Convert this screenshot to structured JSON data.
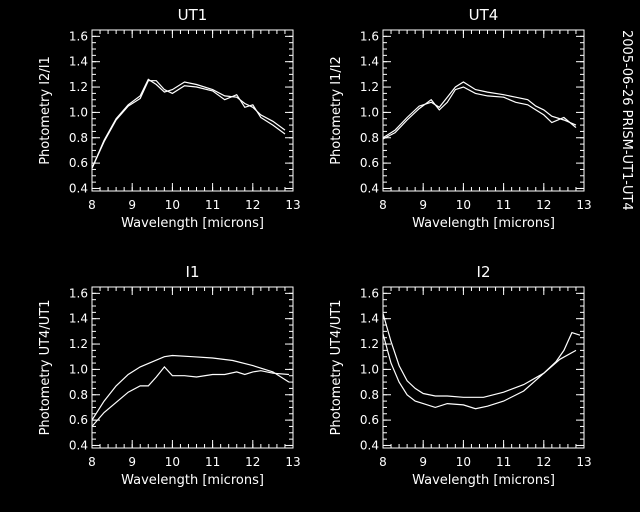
{
  "side_label": "2005-06-26 PRISM-UT1-UT4",
  "colors": {
    "background": "#000000",
    "foreground": "#ffffff"
  },
  "chart_data": [
    {
      "type": "line",
      "title": "UT1",
      "xlabel": "Wavelength [microns]",
      "ylabel": "Photometry I2/I1",
      "xlim": [
        8,
        13
      ],
      "ylim": [
        0.38,
        1.65
      ],
      "xticks": [
        8,
        9,
        10,
        11,
        12,
        13
      ],
      "xtick_labels": [
        "8",
        "9",
        "10",
        "11",
        "12",
        "13"
      ],
      "yticks": [
        0.4,
        0.6,
        0.8,
        1.0,
        1.2,
        1.4,
        1.6
      ],
      "ytick_labels": [
        "0.4",
        "0.6",
        "0.8",
        "1.0",
        "1.2",
        "1.4",
        "1.6"
      ],
      "series": [
        {
          "x": [
            8.0,
            8.3,
            8.6,
            8.9,
            9.2,
            9.4,
            9.6,
            9.8,
            10.0,
            10.3,
            10.6,
            11.0,
            11.3,
            11.6,
            11.8,
            12.0,
            12.2,
            12.5,
            12.8
          ],
          "y": [
            0.56,
            0.78,
            0.95,
            1.06,
            1.13,
            1.26,
            1.22,
            1.16,
            1.18,
            1.24,
            1.22,
            1.18,
            1.13,
            1.12,
            1.07,
            1.04,
            0.98,
            0.93,
            0.86
          ]
        },
        {
          "x": [
            8.0,
            8.3,
            8.6,
            8.9,
            9.2,
            9.4,
            9.6,
            9.8,
            10.0,
            10.3,
            10.6,
            11.0,
            11.3,
            11.6,
            11.8,
            12.0,
            12.2,
            12.5,
            12.8
          ],
          "y": [
            0.56,
            0.77,
            0.94,
            1.05,
            1.11,
            1.25,
            1.25,
            1.18,
            1.15,
            1.21,
            1.2,
            1.17,
            1.1,
            1.14,
            1.04,
            1.06,
            0.96,
            0.9,
            0.83
          ]
        }
      ]
    },
    {
      "type": "line",
      "title": "UT4",
      "xlabel": "Wavelength [microns]",
      "ylabel": "Photometry I1/I2",
      "xlim": [
        8,
        13
      ],
      "ylim": [
        0.38,
        1.65
      ],
      "xticks": [
        8,
        9,
        10,
        11,
        12,
        13
      ],
      "xtick_labels": [
        "8",
        "9",
        "10",
        "11",
        "12",
        "13"
      ],
      "yticks": [
        0.4,
        0.6,
        0.8,
        1.0,
        1.2,
        1.4,
        1.6
      ],
      "ytick_labels": [
        "0.4",
        "0.6",
        "0.8",
        "1.0",
        "1.2",
        "1.4",
        "1.6"
      ],
      "series": [
        {
          "x": [
            8.0,
            8.3,
            8.6,
            8.9,
            9.2,
            9.4,
            9.6,
            9.8,
            10.0,
            10.3,
            10.6,
            11.0,
            11.3,
            11.6,
            11.8,
            12.0,
            12.2,
            12.5,
            12.8
          ],
          "y": [
            0.8,
            0.86,
            0.96,
            1.05,
            1.08,
            1.04,
            1.12,
            1.2,
            1.24,
            1.18,
            1.16,
            1.14,
            1.12,
            1.1,
            1.05,
            1.02,
            0.97,
            0.94,
            0.9
          ]
        },
        {
          "x": [
            8.0,
            8.3,
            8.6,
            8.9,
            9.2,
            9.4,
            9.6,
            9.8,
            10.0,
            10.3,
            10.6,
            11.0,
            11.3,
            11.6,
            11.8,
            12.0,
            12.2,
            12.5,
            12.8
          ],
          "y": [
            0.79,
            0.84,
            0.94,
            1.03,
            1.1,
            1.02,
            1.08,
            1.18,
            1.2,
            1.15,
            1.13,
            1.12,
            1.08,
            1.06,
            1.02,
            0.98,
            0.92,
            0.96,
            0.88
          ]
        }
      ]
    },
    {
      "type": "line",
      "title": "I1",
      "xlabel": "Wavelength [microns]",
      "ylabel": "Photometry UT4/UT1",
      "xlim": [
        8,
        13
      ],
      "ylim": [
        0.38,
        1.65
      ],
      "xticks": [
        8,
        9,
        10,
        11,
        12,
        13
      ],
      "xtick_labels": [
        "8",
        "9",
        "10",
        "11",
        "12",
        "13"
      ],
      "yticks": [
        0.4,
        0.6,
        0.8,
        1.0,
        1.2,
        1.4,
        1.6
      ],
      "ytick_labels": [
        "0.4",
        "0.6",
        "0.8",
        "1.0",
        "1.2",
        "1.4",
        "1.6"
      ],
      "series": [
        {
          "x": [
            8.0,
            8.3,
            8.6,
            8.9,
            9.2,
            9.5,
            9.8,
            10.0,
            10.5,
            11.0,
            11.5,
            12.0,
            12.5,
            12.9
          ],
          "y": [
            0.6,
            0.75,
            0.87,
            0.96,
            1.02,
            1.06,
            1.1,
            1.11,
            1.1,
            1.09,
            1.07,
            1.03,
            0.98,
            0.9
          ]
        },
        {
          "x": [
            8.0,
            8.3,
            8.6,
            8.9,
            9.2,
            9.4,
            9.6,
            9.8,
            10.0,
            10.3,
            10.6,
            11.0,
            11.3,
            11.6,
            11.8,
            12.0,
            12.2,
            12.5,
            12.9
          ],
          "y": [
            0.55,
            0.66,
            0.74,
            0.82,
            0.87,
            0.87,
            0.94,
            1.02,
            0.95,
            0.95,
            0.94,
            0.96,
            0.96,
            0.98,
            0.96,
            0.98,
            0.99,
            0.97,
            0.96
          ]
        }
      ]
    },
    {
      "type": "line",
      "title": "I2",
      "xlabel": "Wavelength [microns]",
      "ylabel": "Photometry UT4/UT1",
      "xlim": [
        8,
        13
      ],
      "ylim": [
        0.38,
        1.65
      ],
      "xticks": [
        8,
        9,
        10,
        11,
        12,
        13
      ],
      "xtick_labels": [
        "8",
        "9",
        "10",
        "11",
        "12",
        "13"
      ],
      "yticks": [
        0.4,
        0.6,
        0.8,
        1.0,
        1.2,
        1.4,
        1.6
      ],
      "ytick_labels": [
        "0.4",
        "0.6",
        "0.8",
        "1.0",
        "1.2",
        "1.4",
        "1.6"
      ],
      "series": [
        {
          "x": [
            8.0,
            8.2,
            8.4,
            8.6,
            8.8,
            9.0,
            9.3,
            9.6,
            10.0,
            10.5,
            11.0,
            11.5,
            12.0,
            12.4,
            12.8
          ],
          "y": [
            1.44,
            1.22,
            1.03,
            0.91,
            0.85,
            0.81,
            0.79,
            0.79,
            0.78,
            0.78,
            0.82,
            0.88,
            0.97,
            1.08,
            1.15
          ]
        },
        {
          "x": [
            8.0,
            8.2,
            8.4,
            8.6,
            8.8,
            9.0,
            9.3,
            9.6,
            10.0,
            10.3,
            10.6,
            11.0,
            11.5,
            12.0,
            12.3,
            12.5,
            12.7,
            12.9
          ],
          "y": [
            1.28,
            1.05,
            0.9,
            0.8,
            0.75,
            0.73,
            0.7,
            0.73,
            0.72,
            0.69,
            0.71,
            0.75,
            0.83,
            0.97,
            1.06,
            1.15,
            1.29,
            1.27
          ]
        }
      ]
    }
  ]
}
